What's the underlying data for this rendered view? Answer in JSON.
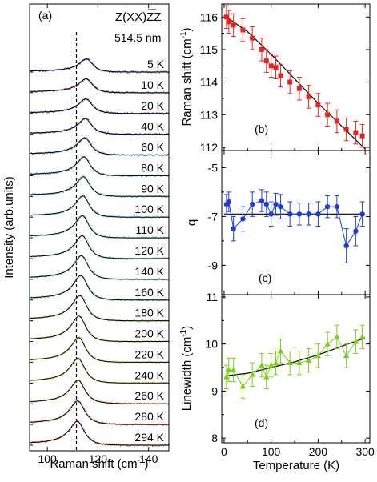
{
  "chart_data": [
    {
      "panel": "(a)",
      "type": "line",
      "title": "Z(XX)Z̄",
      "title_main": "Z(XX)Z",
      "subtitle": "514.5 nm",
      "xlabel": "Raman shift (cm",
      "xlabel_sup": "-1",
      "xlabel_tail": ")",
      "ylabel": "Intensity (arb.units)",
      "xlim": [
        93,
        148
      ],
      "xticks": [
        100,
        120,
        140
      ],
      "dashed_line_x": 111.5,
      "series": [
        {
          "name": "5 K",
          "center": 115.9,
          "width": 6.6,
          "q": -6.5,
          "amp": 16,
          "color": "#3a4fa6"
        },
        {
          "name": "10 K",
          "center": 115.8,
          "width": 6.7,
          "q": -6.4,
          "amp": 17,
          "color": "#7a3fb5"
        },
        {
          "name": "20 K",
          "center": 115.6,
          "width": 6.6,
          "q": -7.5,
          "amp": 18,
          "color": "#7b3ab8"
        },
        {
          "name": "40 K",
          "center": 115.4,
          "width": 6.8,
          "q": -7.1,
          "amp": 19,
          "color": "#4a55c8"
        },
        {
          "name": "60 K",
          "center": 115.2,
          "width": 6.7,
          "q": -6.5,
          "amp": 21,
          "color": "#3f6ad0"
        },
        {
          "name": "80 K",
          "center": 114.9,
          "width": 6.6,
          "q": -6.4,
          "amp": 23,
          "color": "#3b8fd6"
        },
        {
          "name": "90 K",
          "center": 114.7,
          "width": 6.8,
          "q": -6.5,
          "amp": 24,
          "color": "#3fa9d8"
        },
        {
          "name": "100 K",
          "center": 114.5,
          "width": 6.7,
          "q": -6.5,
          "amp": 26,
          "color": "#3fbcd6"
        },
        {
          "name": "110 K",
          "center": 114.3,
          "width": 6.8,
          "q": -6.5,
          "amp": 27,
          "color": "#40c7c9"
        },
        {
          "name": "120 K",
          "center": 114.2,
          "width": 6.8,
          "q": -6.9,
          "amp": 28,
          "color": "#45c9a8"
        },
        {
          "name": "140 K",
          "center": 113.9,
          "width": 6.9,
          "q": -6.9,
          "amp": 29,
          "color": "#49c98a"
        },
        {
          "name": "160 K",
          "center": 113.7,
          "width": 7.0,
          "q": -6.9,
          "amp": 30,
          "color": "#4cc46a"
        },
        {
          "name": "180 K",
          "center": 113.3,
          "width": 7.1,
          "q": -6.9,
          "amp": 31,
          "color": "#74c850"
        },
        {
          "name": "200 K",
          "center": 113.0,
          "width": 7.1,
          "q": -6.6,
          "amp": 31,
          "color": "#98cc44"
        },
        {
          "name": "220 K",
          "center": 112.9,
          "width": 7.2,
          "q": -6.6,
          "amp": 30,
          "color": "#c2cf3f"
        },
        {
          "name": "240 K",
          "center": 112.6,
          "width": 7.3,
          "q": -6.6,
          "amp": 30,
          "color": "#e0c43a"
        },
        {
          "name": "260 K",
          "center": 112.5,
          "width": 7.3,
          "q": -8.2,
          "amp": 29,
          "color": "#e79a38"
        },
        {
          "name": "280 K",
          "center": 112.4,
          "width": 7.3,
          "q": -7.6,
          "amp": 29,
          "color": "#e06d35"
        },
        {
          "name": "294 K",
          "center": 112.3,
          "width": 7.4,
          "q": -6.9,
          "amp": 29,
          "color": "#d94832"
        }
      ]
    },
    {
      "panel": "(b)",
      "type": "scatter",
      "xlabel": "",
      "ylabel": "Raman shift (cm",
      "ylabel_sup": "-1",
      "ylabel_tail": ")",
      "xlim": [
        -5,
        310
      ],
      "ylim": [
        111.9,
        116.4
      ],
      "yticks": [
        112,
        113,
        114,
        115,
        116
      ],
      "color": "#e8231f",
      "x": [
        5,
        10,
        20,
        40,
        60,
        80,
        90,
        100,
        110,
        120,
        140,
        160,
        180,
        200,
        220,
        240,
        260,
        280,
        294
      ],
      "y": [
        116.0,
        115.85,
        115.75,
        115.6,
        115.35,
        115.0,
        114.65,
        114.5,
        114.45,
        114.2,
        114.0,
        113.8,
        113.55,
        113.3,
        113.0,
        112.8,
        112.55,
        112.45,
        112.35
      ],
      "err": [
        0.35,
        0.35,
        0.35,
        0.35,
        0.35,
        0.35,
        0.35,
        0.35,
        0.35,
        0.35,
        0.35,
        0.35,
        0.35,
        0.35,
        0.35,
        0.35,
        0.35,
        0.35,
        0.35
      ],
      "fit": {
        "x": [
          0,
          50,
          100,
          150,
          200,
          250,
          300
        ],
        "y": [
          116.05,
          115.55,
          114.85,
          114.1,
          113.35,
          112.65,
          111.95
        ]
      }
    },
    {
      "panel": "(c)",
      "type": "scatter",
      "xlabel": "",
      "ylabel": "q",
      "xlim": [
        -5,
        310
      ],
      "ylim": [
        -10.2,
        -4.3
      ],
      "yticks": [
        -9,
        -7,
        -5
      ],
      "color": "#1f3dd6",
      "x": [
        5,
        10,
        20,
        40,
        60,
        80,
        90,
        100,
        110,
        120,
        140,
        160,
        180,
        200,
        220,
        240,
        260,
        280,
        294
      ],
      "y": [
        -6.5,
        -6.4,
        -7.5,
        -7.1,
        -6.5,
        -6.35,
        -6.5,
        -6.9,
        -6.5,
        -6.6,
        -6.9,
        -6.9,
        -6.9,
        -6.9,
        -6.6,
        -6.6,
        -8.2,
        -7.6,
        -6.9
      ],
      "err": [
        0.4,
        0.4,
        0.5,
        0.5,
        0.5,
        0.45,
        0.5,
        0.5,
        0.45,
        0.5,
        0.5,
        0.45,
        0.45,
        0.5,
        0.45,
        0.45,
        0.7,
        0.6,
        0.5
      ],
      "fit": {
        "x": [
          0,
          300
        ],
        "y": [
          -6.9,
          -6.9
        ]
      }
    },
    {
      "panel": "(d)",
      "type": "scatter",
      "xlabel": "Temperature (K)",
      "ylabel": "Linewidth (cm",
      "ylabel_sup": "-1",
      "ylabel_tail": ")",
      "xlim": [
        -5,
        310
      ],
      "ylim": [
        7.9,
        11.05
      ],
      "yticks": [
        8,
        9,
        10,
        11
      ],
      "xticks": [
        0,
        100,
        200,
        300
      ],
      "color": "#7ccc1e",
      "x": [
        5,
        10,
        20,
        40,
        60,
        80,
        90,
        100,
        110,
        120,
        140,
        160,
        180,
        200,
        220,
        240,
        260,
        280,
        294
      ],
      "y": [
        9.3,
        9.45,
        9.45,
        9.1,
        9.35,
        9.55,
        9.3,
        9.55,
        9.6,
        9.85,
        9.6,
        9.6,
        9.65,
        9.75,
        10.0,
        10.15,
        9.75,
        10.05,
        10.15
      ],
      "err": [
        0.25,
        0.25,
        0.25,
        0.25,
        0.25,
        0.25,
        0.25,
        0.25,
        0.25,
        0.25,
        0.25,
        0.25,
        0.25,
        0.25,
        0.25,
        0.25,
        0.25,
        0.25,
        0.25
      ],
      "fit": {
        "x": [
          0,
          50,
          100,
          150,
          200,
          250,
          300
        ],
        "y": [
          9.32,
          9.38,
          9.5,
          9.62,
          9.77,
          9.95,
          10.13
        ]
      }
    }
  ]
}
